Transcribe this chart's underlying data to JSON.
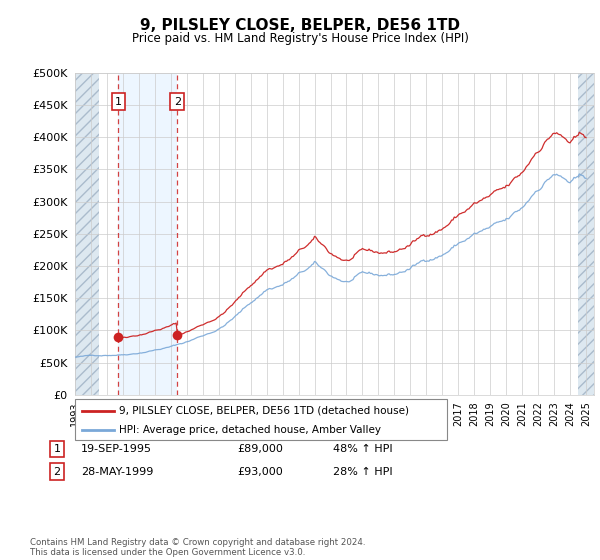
{
  "title": "9, PILSLEY CLOSE, BELPER, DE56 1TD",
  "subtitle": "Price paid vs. HM Land Registry's House Price Index (HPI)",
  "sale_dates_float": [
    1995.72,
    1999.41
  ],
  "sale_prices": [
    89000,
    93000
  ],
  "sale_labels": [
    "1",
    "2"
  ],
  "sale_info": [
    {
      "label": "1",
      "date": "19-SEP-1995",
      "price": "£89,000",
      "change": "48% ↑ HPI"
    },
    {
      "label": "2",
      "date": "28-MAY-1999",
      "price": "£93,000",
      "change": "28% ↑ HPI"
    }
  ],
  "hpi_line_color": "#7aa8d8",
  "sale_line_color": "#cc2222",
  "vline_color": "#cc2222",
  "grid_color": "#cccccc",
  "background_color": "#ffffff",
  "plot_bg_color": "#ffffff",
  "hatch_bg_color": "#dde8f0",
  "shade_color": "#ddeeff",
  "ylim": [
    0,
    500000
  ],
  "yticks": [
    0,
    50000,
    100000,
    150000,
    200000,
    250000,
    300000,
    350000,
    400000,
    450000,
    500000
  ],
  "xlim_start": 1993.0,
  "xlim_end": 2025.5,
  "hatch_left_end": 1994.5,
  "hatch_right_start": 2024.5,
  "shade_start": 1995.72,
  "shade_end": 1999.41,
  "xtick_years": [
    1993,
    1994,
    1995,
    1996,
    1997,
    1998,
    1999,
    2000,
    2001,
    2002,
    2003,
    2004,
    2005,
    2006,
    2007,
    2008,
    2009,
    2010,
    2011,
    2012,
    2013,
    2014,
    2015,
    2016,
    2017,
    2018,
    2019,
    2020,
    2021,
    2022,
    2023,
    2024,
    2025
  ],
  "legend_label_red": "9, PILSLEY CLOSE, BELPER, DE56 1TD (detached house)",
  "legend_label_blue": "HPI: Average price, detached house, Amber Valley",
  "footnote": "Contains HM Land Registry data © Crown copyright and database right 2024.\nThis data is licensed under the Open Government Licence v3.0."
}
